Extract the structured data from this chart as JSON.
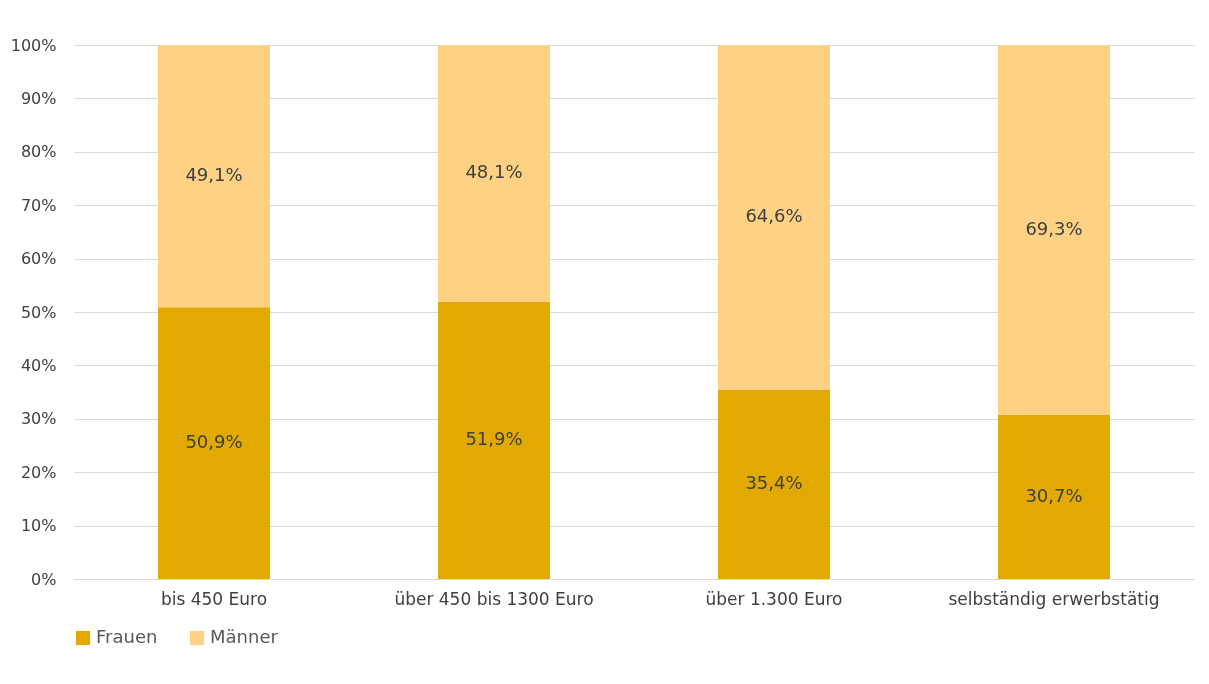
{
  "chart_data": {
    "type": "bar",
    "stacked": true,
    "categories": [
      "bis 450 Euro",
      "über 450 bis 1300 Euro",
      "über 1.300 Euro",
      "selbständig erwerbstätig"
    ],
    "series": [
      {
        "name": "Frauen",
        "color": "#e2a900",
        "values": [
          50.9,
          51.9,
          35.4,
          30.7
        ],
        "value_labels": [
          "50,9%",
          "51,9%",
          "35,4%",
          "30,7%"
        ]
      },
      {
        "name": "Männer",
        "color": "#ffd185",
        "values": [
          49.1,
          48.1,
          64.6,
          69.3
        ],
        "value_labels": [
          "49,1%",
          "48,1%",
          "64,6%",
          "69,3%"
        ]
      }
    ],
    "ylim": [
      0,
      100
    ],
    "yticks": [
      {
        "value": 0,
        "label": "0%"
      },
      {
        "value": 10,
        "label": "10%"
      },
      {
        "value": 20,
        "label": "20%"
      },
      {
        "value": 30,
        "label": "30%"
      },
      {
        "value": 40,
        "label": "40%"
      },
      {
        "value": 50,
        "label": "50%"
      },
      {
        "value": 60,
        "label": "60%"
      },
      {
        "value": 70,
        "label": "70%"
      },
      {
        "value": 80,
        "label": "80%"
      },
      {
        "value": 90,
        "label": "90%"
      },
      {
        "value": 100,
        "label": "100%"
      }
    ],
    "grid": "y",
    "legend": "bottom"
  }
}
